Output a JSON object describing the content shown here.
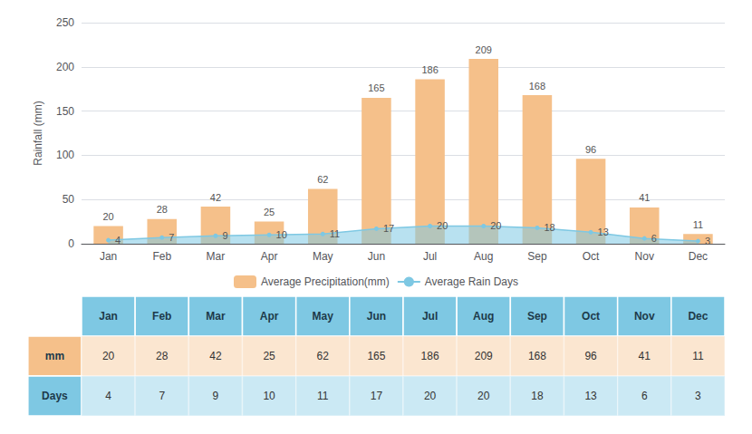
{
  "chart_data": {
    "type": "bar",
    "categories": [
      "Jan",
      "Feb",
      "Mar",
      "Apr",
      "May",
      "Jun",
      "Jul",
      "Aug",
      "Sep",
      "Oct",
      "Nov",
      "Dec"
    ],
    "series": [
      {
        "name": "Average Precipitation(mm)",
        "type": "bar",
        "color": "#F5C08A",
        "values": [
          20,
          28,
          42,
          25,
          62,
          165,
          186,
          209,
          168,
          96,
          41,
          11
        ]
      },
      {
        "name": "Average Rain Days",
        "type": "area",
        "color": "#7EC8E3",
        "values": [
          4,
          7,
          9,
          10,
          11,
          17,
          20,
          20,
          18,
          13,
          6,
          3
        ]
      }
    ],
    "ylabel": "Rainfall (mm)",
    "ylim": [
      0,
      250
    ],
    "yticks": [
      0,
      50,
      100,
      150,
      200,
      250
    ],
    "grid": true,
    "legend": "bottom",
    "data_labels": true,
    "table_row_labels": [
      "mm",
      "Days"
    ]
  }
}
